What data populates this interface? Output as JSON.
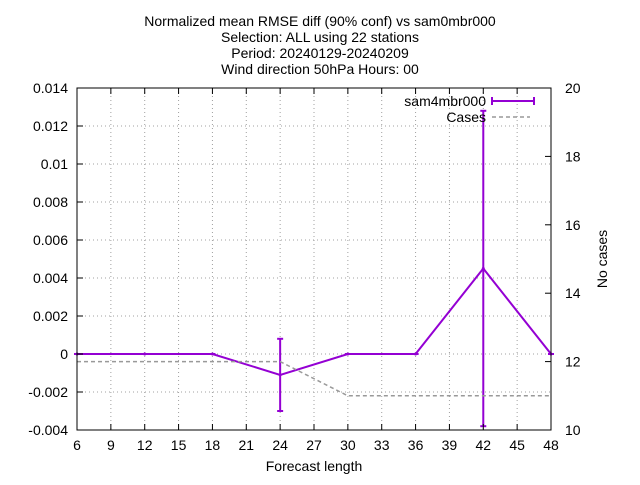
{
  "chart_data": {
    "type": "line",
    "title_lines": [
      "Normalized mean RMSE diff (90% conf) vs sam0mbr000",
      "Selection: ALL using    22 stations",
      "Period: 20240129-20240209",
      "Wind direction 50hPa   Hours: 00"
    ],
    "xlabel": "Forecast length",
    "ylabel": "",
    "y2label": "No cases",
    "xlim": [
      6,
      48
    ],
    "ylim": [
      -0.004,
      0.014
    ],
    "y2lim": [
      10,
      20
    ],
    "xticks": [
      6,
      9,
      12,
      15,
      18,
      21,
      24,
      27,
      30,
      33,
      36,
      39,
      42,
      45,
      48
    ],
    "yticks": [
      -0.004,
      -0.002,
      0,
      0.002,
      0.004,
      0.006,
      0.008,
      0.01,
      0.012,
      0.014
    ],
    "ytick_labels": [
      "-0.004",
      "-0.002",
      "0",
      "0.002",
      "0.004",
      "0.006",
      "0.008",
      "0.01",
      "0.012",
      "0.014"
    ],
    "y2ticks": [
      10,
      12,
      14,
      16,
      18,
      20
    ],
    "grid": true,
    "legend_position": "top-right",
    "series": [
      {
        "name": "sam4mbr000",
        "axis": "y",
        "style": "line-errorbars",
        "color": "#9400d3",
        "x": [
          6,
          12,
          18,
          24,
          30,
          36,
          42,
          48
        ],
        "values": [
          0,
          0,
          0,
          -0.0011,
          0,
          0,
          0.0045,
          0
        ],
        "error_low": [
          0,
          0,
          0,
          -0.003,
          0,
          0,
          -0.0038,
          0
        ],
        "error_high": [
          0,
          0,
          0,
          0.0008,
          0,
          0,
          0.0128,
          0
        ]
      },
      {
        "name": "Cases",
        "axis": "y2",
        "style": "dashed",
        "color": "#999999",
        "x": [
          6,
          12,
          18,
          24,
          30,
          36,
          42,
          48
        ],
        "values": [
          12,
          12,
          12,
          12,
          11,
          11,
          11,
          11
        ]
      }
    ]
  }
}
